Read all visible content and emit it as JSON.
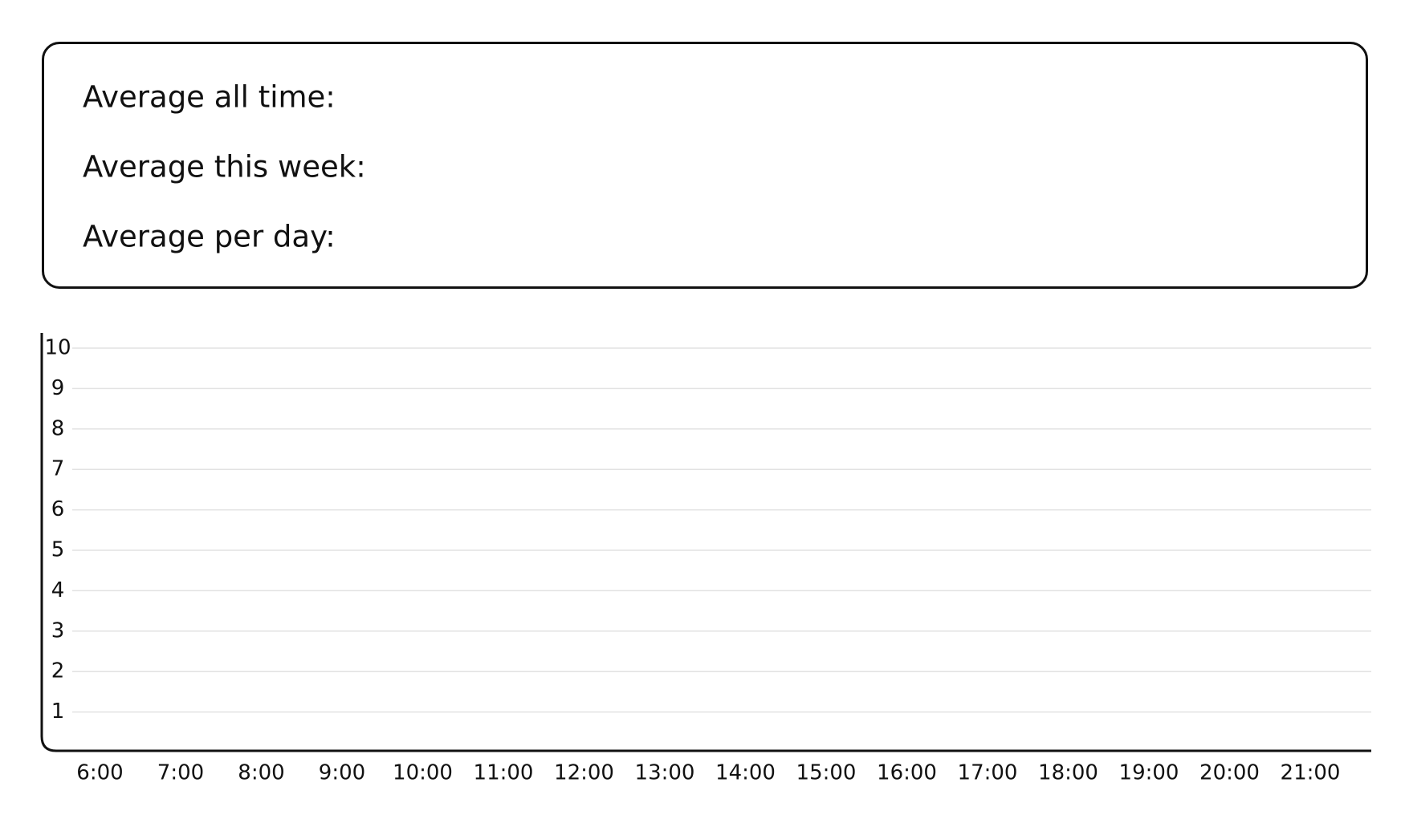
{
  "stats": {
    "labels": [
      "Average all time:",
      "Average this week:",
      "Average per day:"
    ]
  },
  "chart_data": {
    "type": "bar",
    "categories": [
      "6:00",
      "7:00",
      "8:00",
      "9:00",
      "10:00",
      "11:00",
      "12:00",
      "13:00",
      "14:00",
      "15:00",
      "16:00",
      "17:00",
      "18:00",
      "19:00",
      "20:00",
      "21:00"
    ],
    "ylim": [
      0,
      10
    ],
    "yticks": [
      1,
      2,
      3,
      4,
      5,
      6,
      7,
      8,
      9,
      10
    ],
    "grid": true
  }
}
